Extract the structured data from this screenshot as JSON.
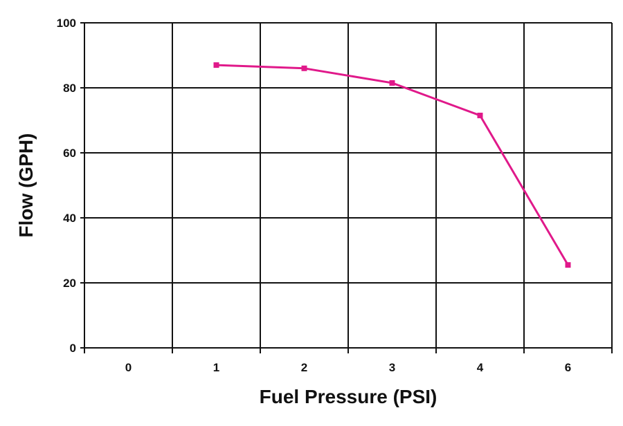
{
  "chart_data": {
    "type": "line",
    "title": "",
    "xlabel": "Fuel Pressure (PSI)",
    "ylabel": "Flow (GPH)",
    "categories": [
      "0",
      "1",
      "2",
      "3",
      "4",
      "6"
    ],
    "series": [
      {
        "values": [
          null,
          87,
          86,
          81.5,
          71.5,
          25.5
        ],
        "color": "#e0198a"
      }
    ],
    "ylim": [
      0,
      100
    ],
    "yticks": [
      0,
      20,
      40,
      60,
      80,
      100
    ],
    "grid": true,
    "legend": "none"
  }
}
